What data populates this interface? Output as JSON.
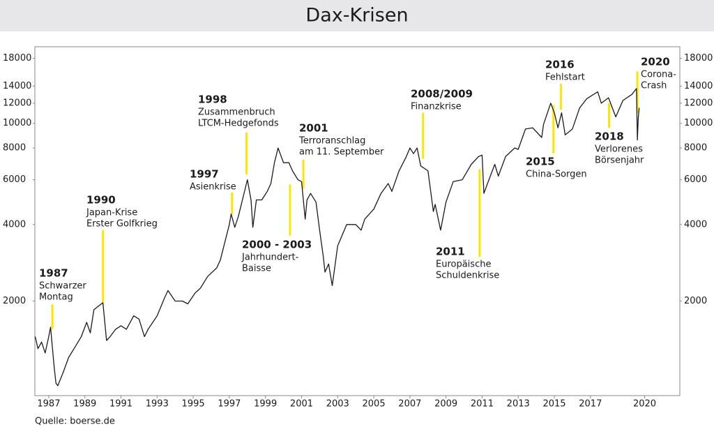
{
  "chart_data": {
    "type": "line",
    "title": "Dax-Krisen",
    "source": "Quelle: boerse.de",
    "log_scale": true,
    "grid": false,
    "color": "#1a1a1a",
    "annotation_color": "#ffe600",
    "xlim": [
      1986.23,
      2021.95
    ],
    "xticks": [
      1987,
      1989,
      1991,
      1993,
      1995,
      1997,
      1999,
      2001,
      2003,
      2005,
      2007,
      2009,
      2011,
      2013,
      2015,
      2017,
      2020
    ],
    "ylim": [
      850,
      20000
    ],
    "yticks": [
      2000,
      4000,
      6000,
      8000,
      10000,
      12000,
      14000,
      18000
    ],
    "x": [
      1986.25,
      1986.4,
      1986.6,
      1986.8,
      1987.0,
      1987.1,
      1987.3,
      1987.4,
      1987.5,
      1987.8,
      1988.1,
      1988.4,
      1988.8,
      1989.1,
      1989.3,
      1989.5,
      1989.7,
      1990.0,
      1990.2,
      1990.4,
      1990.7,
      1991.0,
      1991.3,
      1991.7,
      1992.0,
      1992.3,
      1992.5,
      1993.0,
      1993.4,
      1993.6,
      1994.0,
      1994.4,
      1994.7,
      1995.1,
      1995.4,
      1995.8,
      1996.3,
      1996.5,
      1997.0,
      1997.1,
      1997.3,
      1997.5,
      1998.0,
      1998.2,
      1998.3,
      1998.5,
      1998.8,
      1999.1,
      1999.3,
      1999.5,
      1999.7,
      2000.0,
      2000.3,
      2000.5,
      2000.8,
      2001.0,
      2001.2,
      2001.3,
      2001.5,
      2001.8,
      2002.0,
      2002.2,
      2002.3,
      2002.5,
      2002.7,
      2003.0,
      2003.3,
      2003.5,
      2004.0,
      2004.3,
      2004.5,
      2005.0,
      2005.4,
      2005.8,
      2006.0,
      2006.4,
      2006.8,
      2007.0,
      2007.2,
      2007.4,
      2007.6,
      2008.0,
      2008.3,
      2008.4,
      2008.7,
      2009.0,
      2009.4,
      2009.9,
      2010.4,
      2010.8,
      2011.0,
      2011.1,
      2011.3,
      2011.7,
      2011.9,
      2012.3,
      2012.8,
      2013.0,
      2013.4,
      2013.8,
      2014.3,
      2014.4,
      2014.8,
      2015.0,
      2015.2,
      2015.4,
      2015.6,
      2016.0,
      2016.4,
      2016.8,
      2017.4,
      2017.6,
      2018.0,
      2018.4,
      2018.8,
      2019.3,
      2019.55,
      2019.6,
      2019.65,
      2019.7
    ],
    "values": [
      1450,
      1300,
      1380,
      1250,
      1450,
      1580,
      1100,
      950,
      930,
      1050,
      1200,
      1300,
      1450,
      1650,
      1500,
      1850,
      1900,
      1970,
      1400,
      1450,
      1550,
      1600,
      1550,
      1750,
      1700,
      1450,
      1550,
      1750,
      2050,
      2200,
      2000,
      2000,
      1950,
      2150,
      2250,
      2500,
      2700,
      2900,
      4000,
      4400,
      3900,
      4300,
      6000,
      5000,
      3900,
      5000,
      5000,
      5400,
      5800,
      7000,
      8000,
      7000,
      7000,
      6500,
      6000,
      5900,
      4200,
      5000,
      5300,
      4900,
      3800,
      3000,
      2600,
      2800,
      2300,
      3300,
      3700,
      4000,
      4000,
      3800,
      4200,
      4600,
      5300,
      5800,
      5400,
      6500,
      7400,
      8000,
      7600,
      8000,
      6800,
      6500,
      4500,
      4800,
      3800,
      4900,
      5900,
      6000,
      6900,
      7400,
      7500,
      5300,
      5800,
      6900,
      6200,
      7400,
      8000,
      7900,
      9500,
      9600,
      8800,
      9900,
      12000,
      11000,
      9600,
      11000,
      9000,
      9500,
      11500,
      12500,
      13300,
      12000,
      12600,
      10600,
      12300,
      13000,
      13700,
      8600,
      10500,
      11500
    ],
    "annotations": [
      {
        "x": 1987.2,
        "y": [
          1555,
          1940
        ],
        "title": "1987",
        "lines": [
          "Schwarzer",
          "Montag"
        ]
      },
      {
        "x": 1990.0,
        "y": [
          1975,
          3800
        ],
        "title": "1990",
        "lines": [
          "Japan-Krise",
          "Erster Golfkrieg"
        ]
      },
      {
        "x": 1997.15,
        "y": [
          4400,
          5350
        ],
        "title": "1997",
        "lines": [
          "Asienkrise"
        ]
      },
      {
        "x": 1997.95,
        "y": [
          6300,
          9200
        ],
        "title": "1998",
        "lines": [
          "Zusammenbruch",
          "LTCM-Hedgefonds"
        ]
      },
      {
        "x": 2000.36,
        "y": [
          3620,
          5750
        ],
        "title": "2000 - 2003",
        "lines": [
          "Jahrhundert-",
          "Baisse"
        ]
      },
      {
        "x": 2001.1,
        "y": [
          5540,
          7200
        ],
        "title": "2001",
        "lines": [
          "Terroranschlag",
          "am 11. September"
        ]
      },
      {
        "x": 2007.73,
        "y": [
          7250,
          11000
        ],
        "title": "2008/2009",
        "lines": [
          "Finanzkrise"
        ]
      },
      {
        "x": 2010.86,
        "y": [
          2980,
          6600
        ],
        "title": "2011",
        "lines": [
          "Europäische",
          "Schuldenkrise"
        ]
      },
      {
        "x": 2014.95,
        "y": [
          7600,
          11800
        ],
        "title": "2015",
        "lines": [
          "China-Sorgen"
        ]
      },
      {
        "x": 2015.37,
        "y": [
          11300,
          14300
        ],
        "title": "2016",
        "lines": [
          "Fehlstart"
        ]
      },
      {
        "x": 2018.03,
        "y": [
          9600,
          12000
        ],
        "title": "2018",
        "lines": [
          "Verlorenes",
          "Börsenjahr"
        ]
      },
      {
        "x": 2019.6,
        "y": [
          11000,
          16000
        ],
        "title": "2020",
        "lines": [
          "Corona-",
          "Crash"
        ]
      }
    ]
  }
}
